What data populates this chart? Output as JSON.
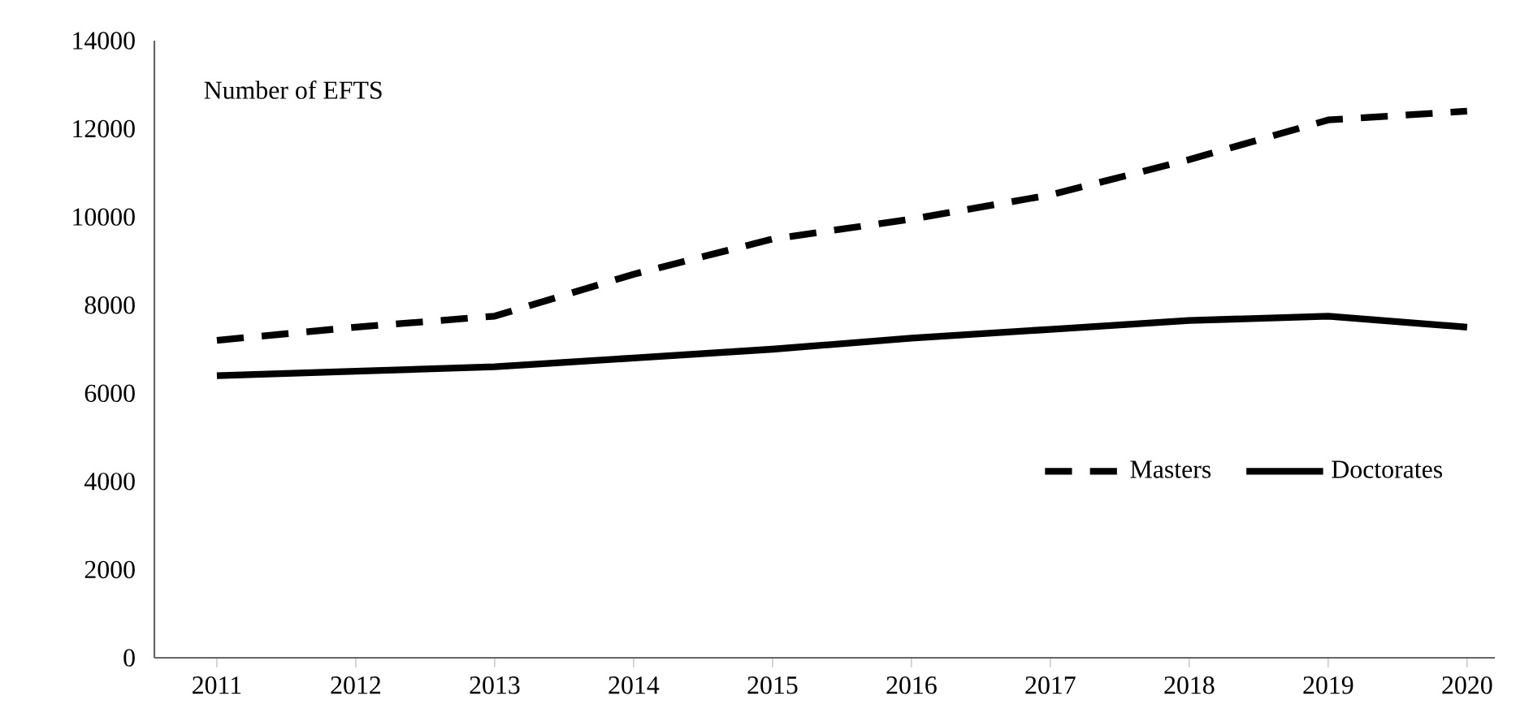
{
  "chart_data": {
    "type": "line",
    "ylabel": "Number of EFTS",
    "categories": [
      "2011",
      "2012",
      "2013",
      "2014",
      "2015",
      "2016",
      "2017",
      "2018",
      "2019",
      "2020"
    ],
    "series": [
      {
        "name": "Masters",
        "color": "#000000",
        "line_style": "dashed",
        "values": [
          7200,
          7500,
          7750,
          8700,
          9500,
          9950,
          10500,
          11300,
          12200,
          12400
        ]
      },
      {
        "name": "Doctorates",
        "color": "#000000",
        "line_style": "solid",
        "values": [
          6400,
          6500,
          6600,
          6800,
          7000,
          7250,
          7450,
          7650,
          7750,
          7500
        ]
      }
    ],
    "ylim": [
      0,
      14000
    ],
    "yticks": [
      0,
      2000,
      4000,
      6000,
      8000,
      10000,
      12000,
      14000
    ],
    "grid": false,
    "legend": "bottom right",
    "marker": "none"
  }
}
